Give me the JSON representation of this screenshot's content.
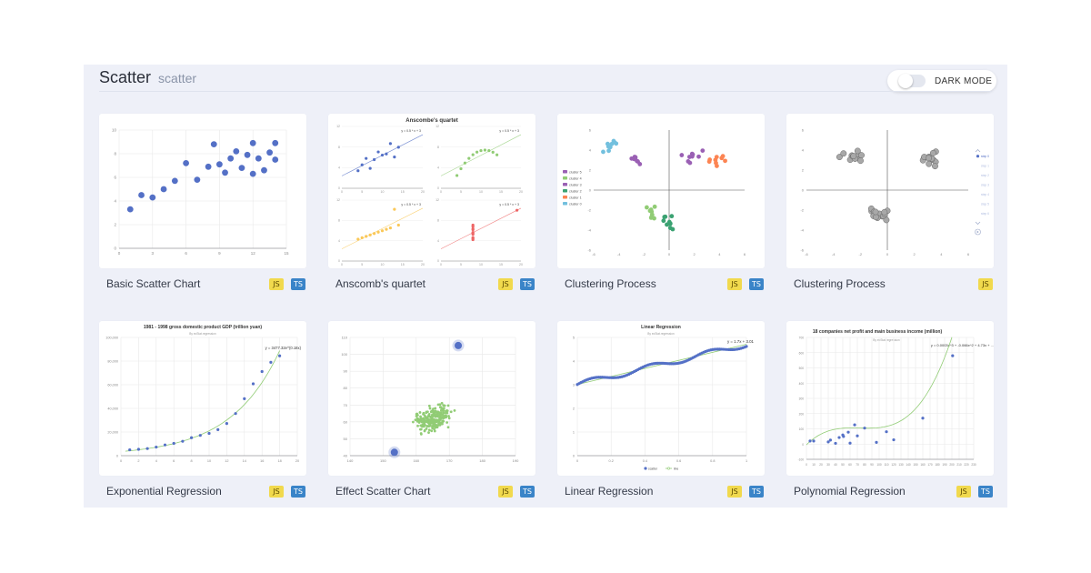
{
  "header": {
    "title": "Scatter",
    "subtitle": "scatter"
  },
  "dark_mode": {
    "label": "DARK MODE",
    "enabled": false
  },
  "badges": {
    "js": "JS",
    "ts": "TS"
  },
  "cards": [
    {
      "name": "Basic Scatter Chart",
      "js": true,
      "ts": true
    },
    {
      "name": "Anscomb's quartet",
      "js": true,
      "ts": true
    },
    {
      "name": "Clustering Process",
      "js": true,
      "ts": true
    },
    {
      "name": "Clustering Process",
      "js": true,
      "ts": false
    },
    {
      "name": "Exponential Regression",
      "js": true,
      "ts": true
    },
    {
      "name": "Effect Scatter Chart",
      "js": true,
      "ts": true
    },
    {
      "name": "Linear Regression",
      "js": true,
      "ts": true
    },
    {
      "name": "Polynomial Regression",
      "js": true,
      "ts": true
    }
  ],
  "colors": {
    "blue": "#5470c6",
    "green": "#91cc75",
    "yellow": "#fac858",
    "red": "#ee6666",
    "gray": "#999999"
  },
  "chart_data": [
    {
      "type": "scatter",
      "x": [
        1,
        2,
        3,
        4,
        5,
        6,
        7,
        8,
        8.5,
        9,
        10,
        10.5,
        11,
        11.5,
        12,
        12,
        12.5,
        13,
        13.5,
        14,
        14,
        9.5
      ],
      "y": [
        3.3,
        4.5,
        4.3,
        5,
        5.7,
        7.2,
        5.8,
        6.9,
        8.8,
        7.1,
        7.6,
        8.2,
        6.8,
        7.9,
        8.9,
        6.3,
        7.6,
        6.6,
        8.1,
        7.5,
        8.9,
        6.4
      ],
      "xlim": [
        0,
        15
      ],
      "ylim": [
        0,
        10
      ],
      "xticks": [
        "0",
        "3",
        "6",
        "9",
        "12",
        "15"
      ],
      "yticks": [
        "0",
        "2",
        "4",
        "6",
        "8",
        "10"
      ]
    },
    {
      "type": "scatter",
      "title": "Anscombe's quartet",
      "fit_label": "y = 0.5 * x + 3",
      "xlim": [
        0,
        20
      ],
      "ylim": [
        0,
        15
      ],
      "xticks": [
        "0",
        "5",
        "10",
        "15",
        "20"
      ],
      "yticks": [
        "0",
        "4",
        "8",
        "12"
      ],
      "series": [
        {
          "x": [
            10,
            8,
            13,
            9,
            11,
            14,
            6,
            4,
            12,
            7,
            5
          ],
          "y": [
            8.04,
            6.95,
            7.58,
            8.81,
            8.33,
            9.96,
            7.24,
            4.26,
            10.84,
            4.82,
            5.68
          ]
        },
        {
          "x": [
            10,
            8,
            13,
            9,
            11,
            14,
            6,
            4,
            12,
            7,
            5
          ],
          "y": [
            9.14,
            8.14,
            8.74,
            8.77,
            9.26,
            8.1,
            6.13,
            3.1,
            9.13,
            7.26,
            4.74
          ]
        },
        {
          "x": [
            10,
            8,
            13,
            9,
            11,
            14,
            6,
            4,
            12,
            7,
            5
          ],
          "y": [
            7.46,
            6.77,
            12.74,
            7.11,
            7.81,
            8.84,
            6.08,
            5.39,
            8.15,
            6.42,
            5.73
          ]
        },
        {
          "x": [
            8,
            8,
            8,
            8,
            8,
            8,
            8,
            19,
            8,
            8,
            8
          ],
          "y": [
            6.58,
            5.76,
            7.71,
            8.84,
            8.47,
            7.04,
            5.25,
            12.5,
            5.56,
            7.91,
            6.89
          ]
        }
      ]
    },
    {
      "type": "scatter",
      "xlim": [
        -6,
        6
      ],
      "ylim": [
        -6,
        6
      ],
      "xticks": [
        "-6",
        "-4",
        "-2",
        "0",
        "2",
        "4",
        "6"
      ],
      "yticks": [
        "-6",
        "-4",
        "-2",
        "0",
        "2",
        "4",
        "6"
      ],
      "legend": [
        "cluster 5",
        "cluster 4",
        "cluster 3",
        "cluster 2",
        "cluster 1",
        "cluster 0"
      ],
      "legend_position": "left",
      "clusters": [
        {
          "color": "#9a60b4",
          "cx": -2.6,
          "cy": 3.2
        },
        {
          "color": "#9a60b4",
          "cx": 2.1,
          "cy": 3.3
        },
        {
          "color": "#fc8452",
          "cx": 3.8,
          "cy": 2.9
        },
        {
          "color": "#91cc75",
          "cx": -1.2,
          "cy": -2.3
        },
        {
          "color": "#3ba272",
          "cx": 0.2,
          "cy": -3.2
        },
        {
          "color": "#73c0de",
          "cx": -4.4,
          "cy": 4.4
        }
      ]
    },
    {
      "type": "scatter",
      "xlim": [
        -6,
        6
      ],
      "ylim": [
        -6,
        6
      ],
      "xticks": [
        "-6",
        "-4",
        "-2",
        "0",
        "2",
        "4",
        "6"
      ],
      "yticks": [
        "-6",
        "-4",
        "-2",
        "0",
        "2",
        "4",
        "6"
      ],
      "steps": [
        "step 0",
        "step 1",
        "step 2",
        "step 3",
        "step 4",
        "step 5",
        "step 6"
      ],
      "clusters": [
        {
          "cx": -2.5,
          "cy": 3.3
        },
        {
          "cx": 3.3,
          "cy": 3.2
        },
        {
          "cx": -0.8,
          "cy": -2.3
        }
      ]
    },
    {
      "type": "scatter",
      "title": "1981 - 1998 gross domestic product GDP (trillion yuan)",
      "subtitle": "By ecStat.regression",
      "fit_label": "y = 3477.32e^(0.18x)",
      "x": [
        1,
        2,
        3,
        4,
        5,
        6,
        7,
        8,
        9,
        10,
        11,
        12,
        13,
        14,
        15,
        16,
        17,
        18
      ],
      "y": [
        4935,
        5373,
        6021,
        7278,
        9099,
        10376,
        12175,
        15180,
        17180,
        18873,
        22005,
        27195,
        35644,
        48198,
        60794,
        71177,
        78973,
        84402
      ],
      "xlim": [
        0,
        20
      ],
      "ylim": [
        0,
        100000
      ],
      "xticks": [
        "0",
        "2",
        "4",
        "6",
        "8",
        "10",
        "12",
        "14",
        "16",
        "18",
        "20"
      ],
      "yticks": [
        "0",
        "20,000",
        "40,000",
        "60,000",
        "80,000",
        "100,000"
      ]
    },
    {
      "type": "scatter",
      "xlim": [
        140,
        190
      ],
      "ylim": [
        40,
        110
      ],
      "xticks": [
        "140",
        "150",
        "160",
        "170",
        "180",
        "190"
      ],
      "yticks": [
        "40",
        "50",
        "60",
        "70",
        "80",
        "90",
        "100",
        "110"
      ],
      "effect_points": [
        [
          172.7,
          105.2
        ],
        [
          153.4,
          42
        ]
      ],
      "cloud_center": [
        165,
        62
      ]
    },
    {
      "type": "scatter",
      "title": "Linear Regression",
      "subtitle": "By ecStat.regression",
      "fit_label": "y = 1.7x + 3.01",
      "xlim": [
        0,
        1
      ],
      "ylim": [
        0,
        5
      ],
      "xticks": [
        "0",
        "0.2",
        "0.4",
        "0.6",
        "0.8",
        "1"
      ],
      "yticks": [
        "0",
        "1",
        "2",
        "3",
        "4",
        "5"
      ],
      "legend": [
        "scatter",
        "line"
      ],
      "legend_position": "bottom"
    },
    {
      "type": "scatter",
      "title": "18 companies net profit and main business income (million)",
      "subtitle": "By ecStat.regression",
      "fit_label": "y = 0.0003x^3 + -0.066x^2 + 4.73x + ...",
      "x": [
        96.24,
        33.0,
        57.5,
        45.0,
        51.0,
        66.3,
        80.0,
        110.0,
        160.0,
        201.0,
        40.0,
        50.0,
        10.0,
        60.0,
        70.0,
        120.0,
        5.0,
        30.0
      ],
      "y": [
        11.35,
        26.0,
        78.0,
        43.0,
        50.0,
        126.0,
        105.0,
        81.0,
        170.0,
        580.0,
        5.0,
        60.0,
        20.0,
        6.0,
        54.0,
        28.0,
        20.0,
        14.0
      ],
      "xlim": [
        0,
        230
      ],
      "ylim": [
        -100,
        700
      ],
      "xticks": [
        "0",
        "10",
        "20",
        "30",
        "40",
        "50",
        "60",
        "70",
        "80",
        "90",
        "100",
        "110",
        "120",
        "130",
        "140",
        "150",
        "160",
        "170",
        "180",
        "190",
        "200",
        "210",
        "220",
        "230"
      ],
      "yticks": [
        "-100",
        "0",
        "100",
        "200",
        "300",
        "400",
        "500",
        "600",
        "700"
      ]
    }
  ]
}
